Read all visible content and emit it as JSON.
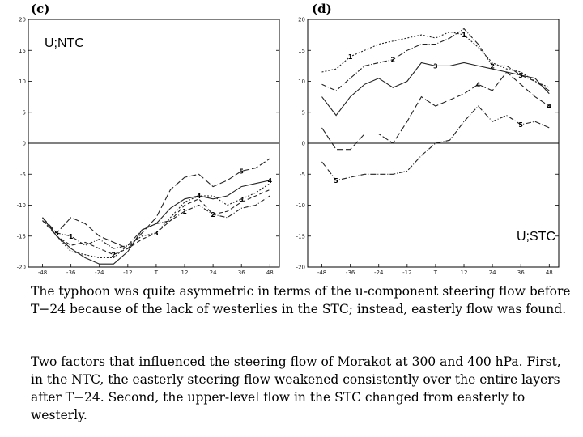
{
  "chart_data": [
    {
      "type": "line",
      "panel_label": "(c)",
      "region_label": "U;NTC",
      "x": [
        -48,
        -42,
        -36,
        -30,
        -24,
        -18,
        -12,
        -6,
        0,
        6,
        12,
        18,
        24,
        30,
        36,
        42,
        48
      ],
      "xticks": [
        -48,
        -36,
        -24,
        -12,
        0,
        12,
        24,
        36,
        48
      ],
      "xtick_labels": [
        "-48",
        "-36",
        "-24",
        "-12",
        "T",
        "12",
        "24",
        "36",
        "48"
      ],
      "ylim": [
        -20,
        20
      ],
      "yticks": [
        20,
        15,
        10,
        5,
        0,
        -5,
        -10,
        -15,
        -20
      ],
      "xlim": [
        -54,
        52
      ],
      "series": [
        {
          "name": "1",
          "values": [
            -12.5,
            -14.5,
            -15,
            -16.5,
            -15.5,
            -17,
            -16.5,
            -14,
            -13,
            -12.5,
            -11,
            -10,
            -11.5,
            -12,
            -10.5,
            -10,
            -8.5
          ],
          "dash": "6 2 1 2"
        },
        {
          "name": "2",
          "values": [
            -12.5,
            -15,
            -16.5,
            -16,
            -17,
            -18,
            -17,
            -15.5,
            -14.5,
            -12.5,
            -10,
            -9,
            -11.5,
            -11,
            -9.5,
            -8.5,
            -7.5
          ],
          "dash": "5 3"
        },
        {
          "name": "3",
          "values": [
            -12,
            -15,
            -17.5,
            -18,
            -18.5,
            -18.5,
            -16.5,
            -15,
            -14.5,
            -12,
            -9.5,
            -8.5,
            -8.5,
            -10,
            -9,
            -8,
            -6.5
          ],
          "dash": "2 2"
        },
        {
          "name": "4",
          "values": [
            -12,
            -15,
            -17,
            -18.5,
            -19.5,
            -19.5,
            -17.5,
            -14,
            -13,
            -10.5,
            -9,
            -8.5,
            -9,
            -8.5,
            -7,
            -6.5,
            -6
          ],
          "dash": ""
        },
        {
          "name": "5",
          "values": [
            -12,
            -14.5,
            -12,
            -13,
            -15,
            -16,
            -17,
            -14.5,
            -12,
            -7.5,
            -5.5,
            -5,
            -7,
            -6,
            -4.5,
            -4,
            -2.5
          ],
          "dash": "8 3"
        }
      ]
    },
    {
      "type": "line",
      "panel_label": "(d)",
      "region_label": "U;STC",
      "x": [
        -48,
        -42,
        -36,
        -30,
        -24,
        -18,
        -12,
        -6,
        0,
        6,
        12,
        18,
        24,
        30,
        36,
        42,
        48
      ],
      "xticks": [
        -48,
        -36,
        -24,
        -12,
        0,
        12,
        24,
        36,
        48
      ],
      "xtick_labels": [
        "-48",
        "-36",
        "-24",
        "-12",
        "T",
        "12",
        "24",
        "36",
        "48"
      ],
      "ylim": [
        -20,
        20
      ],
      "yticks": [
        20,
        15,
        10,
        5,
        0,
        -5,
        -10,
        -15,
        -20
      ],
      "xlim": [
        -54,
        52
      ],
      "series": [
        {
          "name": "1",
          "values": [
            11.5,
            12,
            14,
            15,
            16,
            16.5,
            17,
            17.5,
            17,
            18,
            17.5,
            15.5,
            13,
            12,
            11.5,
            10,
            9
          ],
          "dash": "2 2"
        },
        {
          "name": "2",
          "values": [
            9.5,
            8.5,
            10.5,
            12.5,
            13,
            13.5,
            15,
            16,
            16,
            17,
            18.5,
            16,
            12.5,
            12.5,
            11,
            10,
            8.5
          ],
          "dash": "6 2 1 2"
        },
        {
          "name": "3",
          "values": [
            7.5,
            4.5,
            7.5,
            9.5,
            10.5,
            9,
            10,
            13,
            12.5,
            12.5,
            13,
            12.5,
            12,
            11.5,
            11,
            10.5,
            8
          ],
          "dash": ""
        },
        {
          "name": "4",
          "values": [
            2.5,
            -1,
            -1,
            1.5,
            1.5,
            0,
            3.5,
            7.5,
            6,
            7,
            8,
            9.5,
            8.5,
            11.5,
            9.5,
            7.5,
            6
          ],
          "dash": "8 3"
        },
        {
          "name": "5",
          "values": [
            -3,
            -6,
            -5.5,
            -5,
            -5,
            -5,
            -4.5,
            -2,
            0,
            0.5,
            3.5,
            6,
            3.5,
            4.5,
            3,
            3.5,
            2.5
          ],
          "dash": "7 2 1 2"
        }
      ]
    }
  ],
  "text": {
    "paragraph1": "The typhoon was quite asymmetric in terms of the u-component steering flow before T−24 because of the lack of westerlies in the STC; instead, easterly flow was found.",
    "paragraph2": "Two factors that influenced the steering flow of Morakot at 300 and 400 hPa. First, in the NTC, the easterly steering flow weakened consistently over the entire layers after T−24. Second, the upper-level flow in the STC changed from easterly to westerly."
  }
}
